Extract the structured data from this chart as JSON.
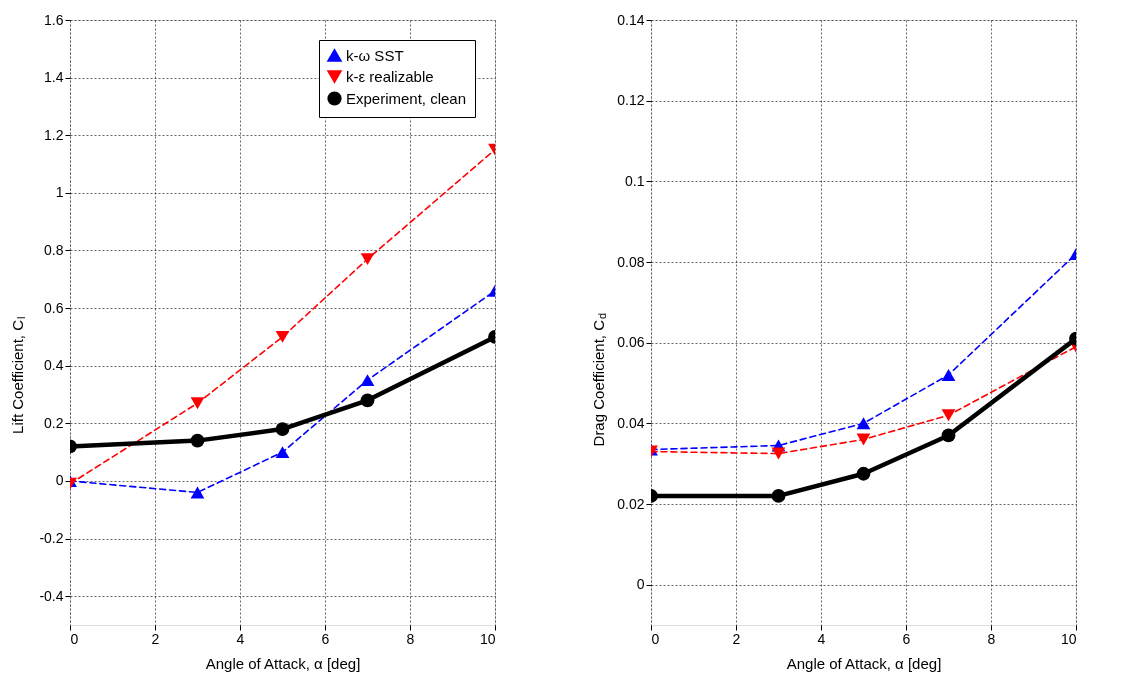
{
  "chart_data": [
    {
      "type": "line",
      "x": [
        0,
        3,
        5,
        7,
        10
      ],
      "xlabel": "Angle of Attack, α [deg]",
      "ylabel": "Lift Coefficient, C$_{l}$",
      "xlim": [
        0,
        10
      ],
      "xticks": [
        0,
        2,
        4,
        6,
        8,
        10
      ],
      "ylim": [
        -0.5,
        1.6
      ],
      "yticks": [
        -0.4,
        -0.2,
        0,
        0.2,
        0.4,
        0.6,
        0.8,
        1,
        1.2,
        1.4,
        1.6
      ],
      "grid": true,
      "legend": "top right",
      "series": [
        {
          "name": "k-ω SST",
          "color": "#0000ff",
          "marker": "triangle",
          "line_style": "dashed",
          "values": [
            0.0,
            -0.04,
            0.1,
            0.35,
            0.66
          ]
        },
        {
          "name": "k-ε realizable",
          "color": "#ff0000",
          "marker": "triangle-down",
          "line_style": "dashed",
          "values": [
            -0.01,
            0.27,
            0.5,
            0.77,
            1.15
          ]
        },
        {
          "name": "Experiment, clean",
          "color": "#000000",
          "marker": "circle",
          "line_style": "solid",
          "values": [
            0.12,
            0.14,
            0.18,
            0.28,
            0.5
          ]
        }
      ]
    },
    {
      "type": "line",
      "x": [
        0,
        3,
        5,
        7,
        10
      ],
      "xlabel": "Angle of Attack, α [deg]",
      "ylabel": "Drag Coefficient, C$_{d}$",
      "xlim": [
        0,
        10
      ],
      "xticks": [
        0,
        2,
        4,
        6,
        8,
        10
      ],
      "ylim": [
        -0.01,
        0.14
      ],
      "yticks": [
        0,
        0.02,
        0.04,
        0.06,
        0.08,
        0.1,
        0.12,
        0.14
      ],
      "grid": true,
      "series": [
        {
          "color": "#0000ff",
          "marker": "triangle",
          "line_style": "dashed",
          "values": [
            0.0335,
            0.0345,
            0.04,
            0.052,
            0.082
          ]
        },
        {
          "color": "#ff0000",
          "marker": "triangle-down",
          "line_style": "dashed",
          "values": [
            0.033,
            0.0325,
            0.036,
            0.042,
            0.059
          ]
        },
        {
          "color": "#000000",
          "marker": "circle",
          "line_style": "solid",
          "values": [
            0.022,
            0.022,
            0.0275,
            0.037,
            0.061
          ]
        }
      ]
    }
  ]
}
